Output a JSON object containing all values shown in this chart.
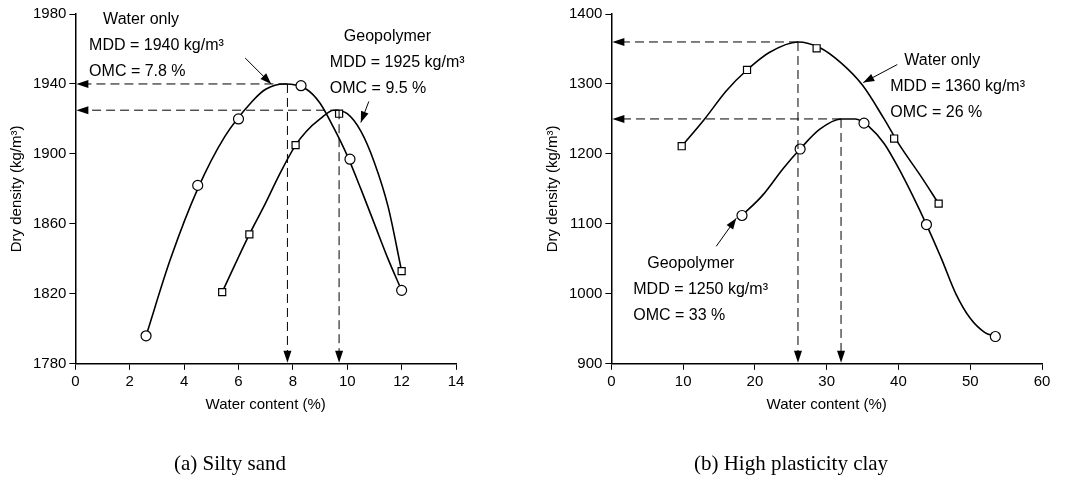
{
  "chart_data": [
    {
      "type": "scatter",
      "title": "(a) Silty sand",
      "xlabel": "Water content (%)",
      "ylabel": "Dry density (kg/m³)",
      "xlim": [
        0,
        14
      ],
      "ylim": [
        1780,
        1980
      ],
      "xticks": [
        0,
        2,
        4,
        6,
        8,
        10,
        12,
        14
      ],
      "yticks": [
        1780,
        1820,
        1860,
        1900,
        1940,
        1980
      ],
      "series": [
        {
          "type": "scatter",
          "marker": "circle",
          "color": "#000000",
          "x": [
            2.6,
            4.5,
            6.0,
            8.3,
            10.1,
            12.0
          ],
          "values": [
            1796,
            1882,
            1920,
            1939,
            1897,
            1822
          ]
        },
        {
          "type": "line",
          "marker": "none",
          "color": "#000000",
          "x": [
            2.6,
            3.5,
            4.5,
            5.5,
            6.5,
            7.0,
            7.7,
            8.5,
            9.0,
            9.5,
            10.0,
            10.5,
            11.0,
            11.5,
            12.0
          ],
          "values": [
            1796,
            1840,
            1880,
            1910,
            1930,
            1937,
            1940,
            1937,
            1929,
            1915,
            1899,
            1880,
            1860,
            1840,
            1822
          ]
        },
        {
          "type": "scatter",
          "marker": "square",
          "color": "#000000",
          "x": [
            5.4,
            6.4,
            8.1,
            9.7,
            12.0
          ],
          "values": [
            1821,
            1854,
            1905,
            1923,
            1833
          ]
        },
        {
          "type": "line",
          "marker": "none",
          "color": "#000000",
          "x": [
            5.4,
            6.4,
            7.0,
            7.5,
            8.1,
            8.5,
            9.0,
            9.5,
            10.0,
            10.5,
            11.0,
            11.5,
            12.0
          ],
          "values": [
            1821,
            1854,
            1872,
            1888,
            1905,
            1913,
            1920,
            1925,
            1923,
            1913,
            1895,
            1870,
            1833
          ]
        }
      ],
      "ref_lines": [
        {
          "axis": "y",
          "value": 1940,
          "line_style": "dashed"
        },
        {
          "axis": "x",
          "value": 7.8,
          "line_style": "dashed"
        },
        {
          "axis": "y",
          "value": 1925,
          "line_style": "dashed"
        },
        {
          "axis": "x",
          "value": 9.7,
          "line_style": "dashed"
        }
      ],
      "annotations": [
        {
          "text": "Water only\nMDD = 1940 kg/m³\nOMC = 7.8 %",
          "x": 7.2,
          "y": 1940
        },
        {
          "text": "Geopolymer\nMDD = 1925 kg/m³\nOMC = 9.5 %",
          "x": 10.5,
          "y": 1918
        }
      ]
    },
    {
      "type": "scatter",
      "title": "(b) High plasticity clay",
      "xlabel": "Water content (%)",
      "ylabel": "Dry density (kg/m³)",
      "xlim": [
        0,
        60
      ],
      "ylim": [
        900,
        1400
      ],
      "xticks": [
        0,
        10,
        20,
        30,
        40,
        50,
        60
      ],
      "yticks": [
        900,
        1000,
        1100,
        1200,
        1300,
        1400
      ],
      "series": [
        {
          "type": "scatter",
          "marker": "square",
          "color": "#000000",
          "x": [
            9.8,
            18.9,
            28.6,
            39.4,
            45.6
          ],
          "values": [
            1211,
            1320,
            1351,
            1222,
            1129
          ]
        },
        {
          "type": "line",
          "marker": "none",
          "color": "#000000",
          "x": [
            9.8,
            13,
            16,
            19,
            22,
            26,
            29,
            32,
            35,
            38,
            40,
            43,
            45.6
          ],
          "values": [
            1211,
            1250,
            1290,
            1321,
            1345,
            1360,
            1352,
            1330,
            1298,
            1250,
            1215,
            1170,
            1129
          ]
        },
        {
          "type": "scatter",
          "marker": "circle",
          "color": "#000000",
          "x": [
            18.2,
            26.3,
            35.2,
            43.9,
            53.5
          ],
          "values": [
            1112,
            1207,
            1244,
            1099,
            939
          ]
        },
        {
          "type": "line",
          "marker": "none",
          "color": "#000000",
          "x": [
            18.2,
            21,
            24,
            26.3,
            29,
            32,
            34,
            36,
            38,
            40,
            42,
            43.9,
            46,
            48,
            50,
            52,
            53.5
          ],
          "values": [
            1112,
            1140,
            1180,
            1207,
            1235,
            1250,
            1250,
            1238,
            1215,
            1180,
            1140,
            1099,
            1050,
            1000,
            965,
            945,
            939
          ]
        }
      ],
      "ref_lines": [
        {
          "axis": "y",
          "value": 1360,
          "line_style": "dashed"
        },
        {
          "axis": "x",
          "value": 26,
          "line_style": "dashed"
        },
        {
          "axis": "y",
          "value": 1250,
          "line_style": "dashed"
        },
        {
          "axis": "x",
          "value": 32,
          "line_style": "dashed"
        }
      ],
      "annotations": [
        {
          "text": "Water only\nMDD = 1360 kg/m³\nOMC = 26 %",
          "x": 35.1,
          "y": 1302
        },
        {
          "text": "Geopolymer\nMDD = 1250 kg/m³\nOMC = 33 %",
          "x": 17.4,
          "y": 1108
        }
      ]
    }
  ]
}
